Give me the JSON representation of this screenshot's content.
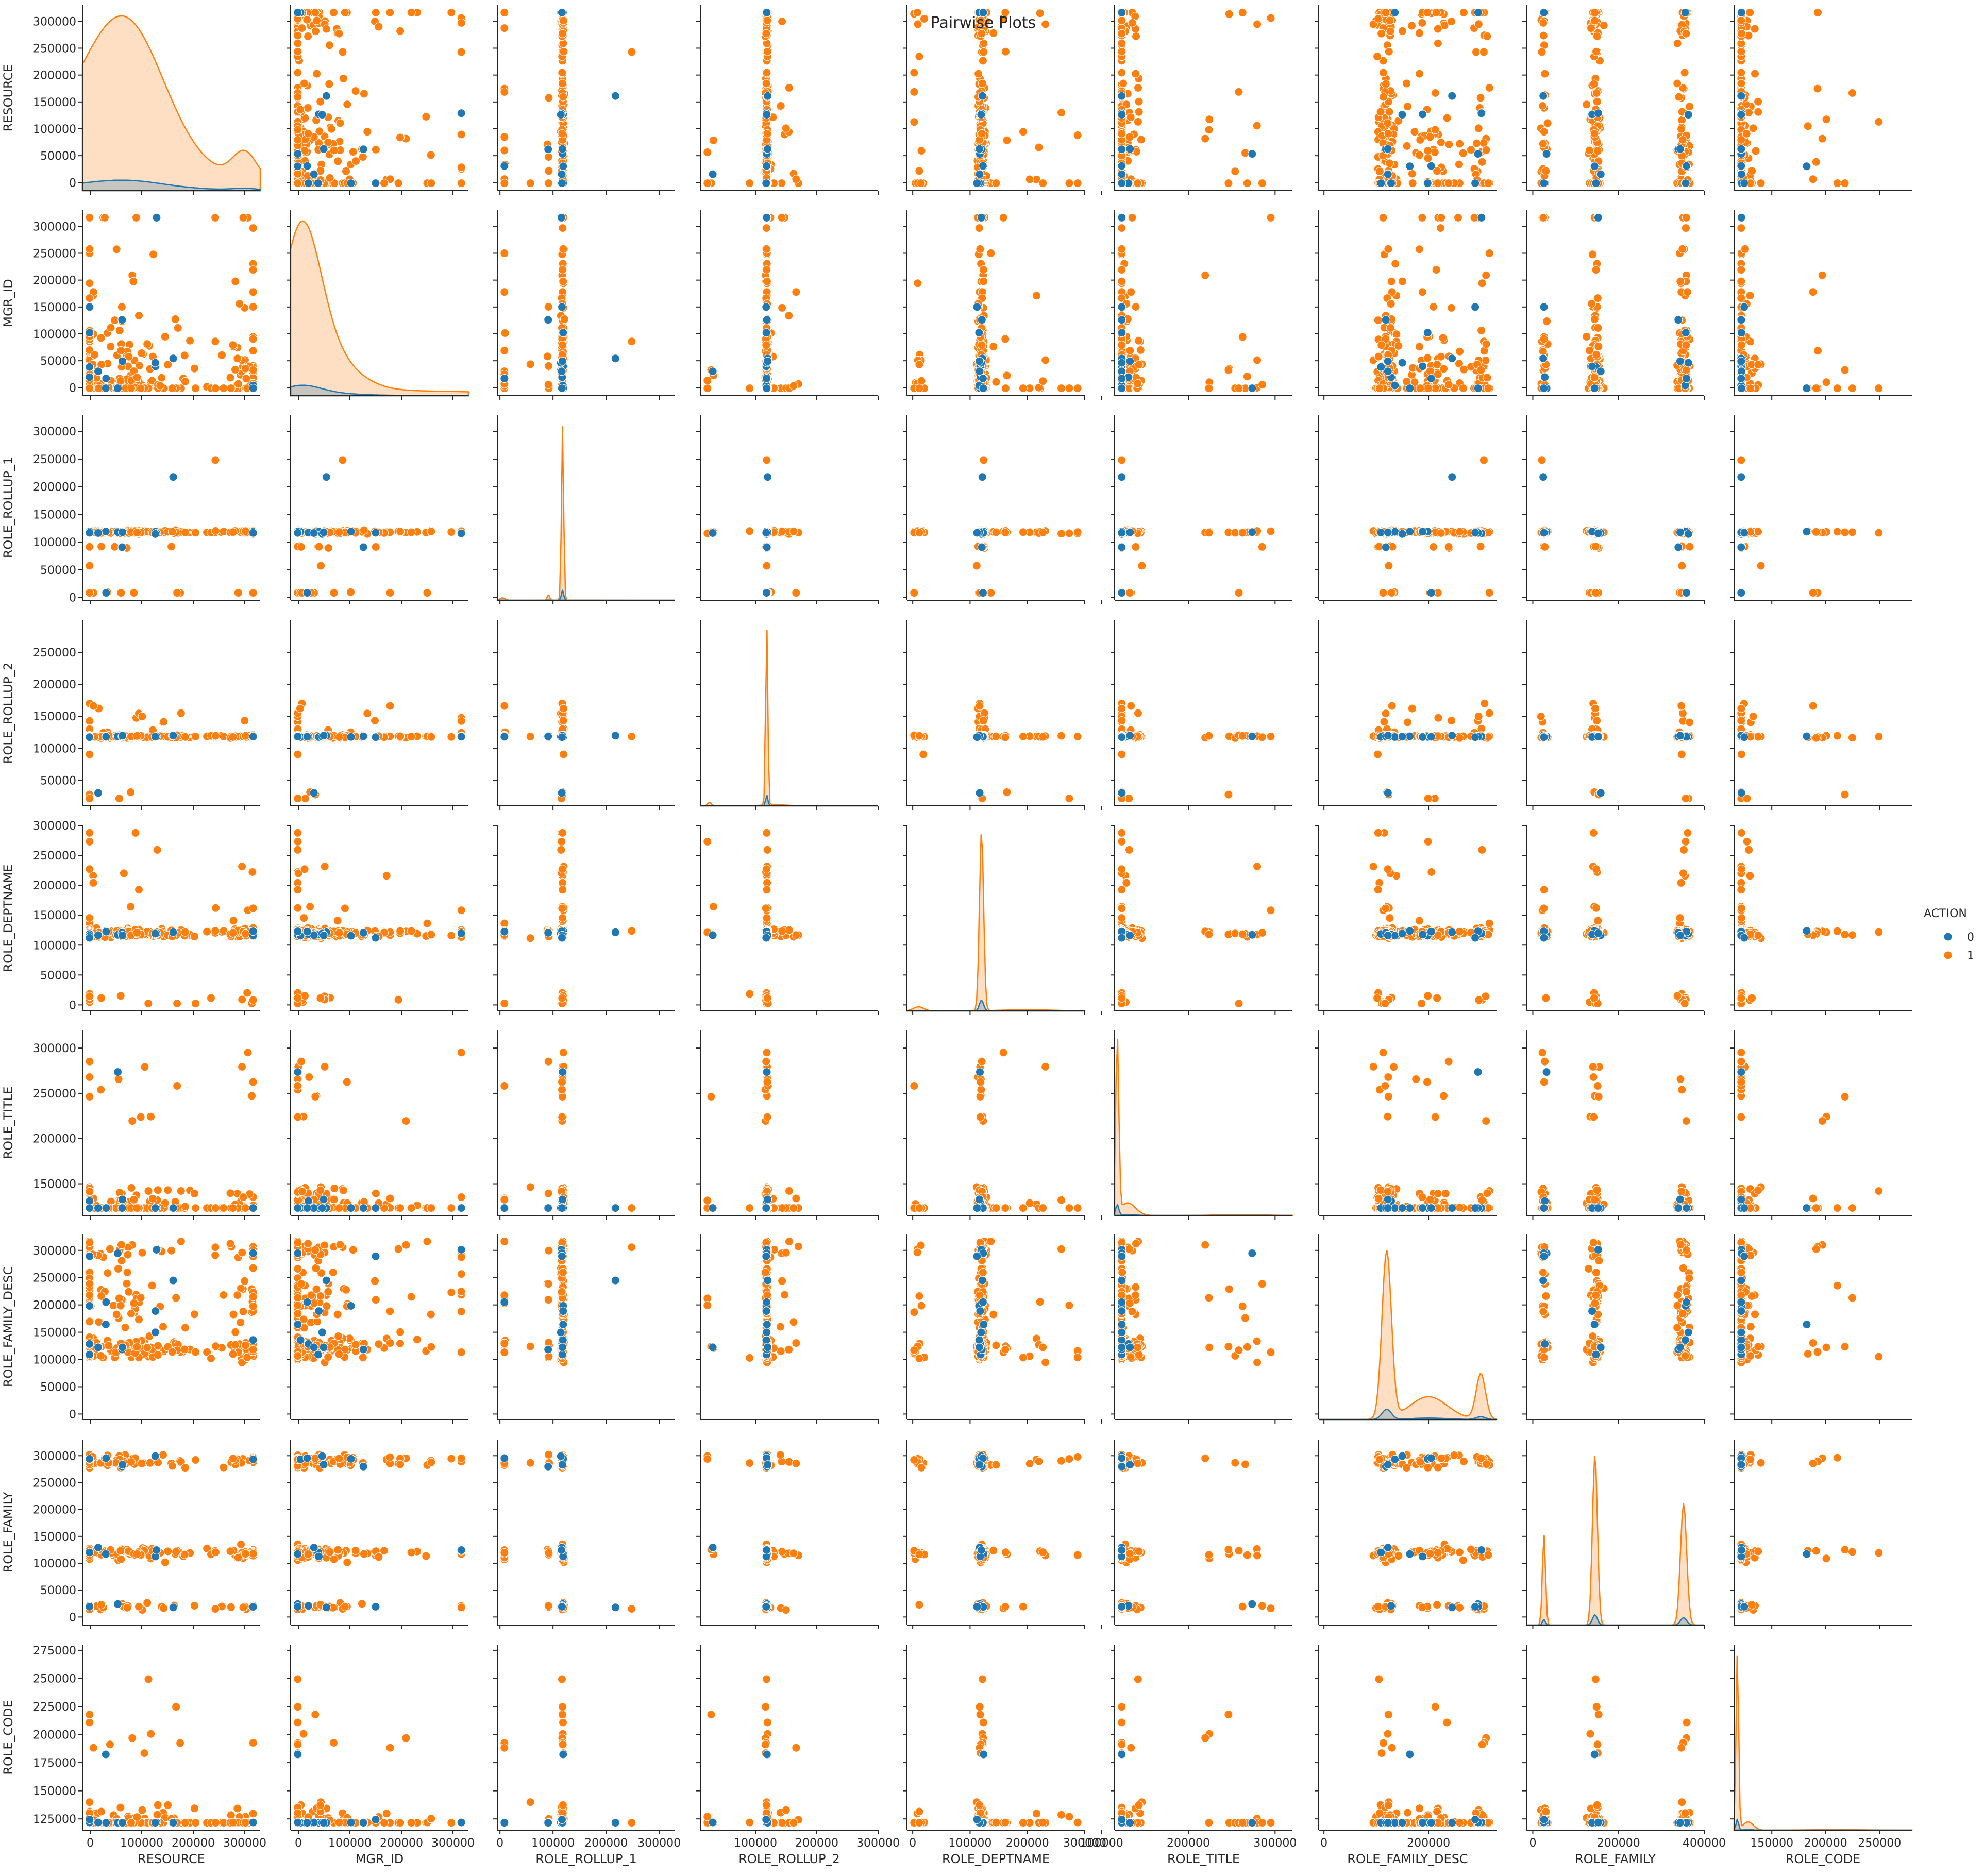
{
  "chart_data": {
    "type": "scatter",
    "title": "Pairwise Plots",
    "variables": [
      "RESOURCE",
      "MGR_ID",
      "ROLE_ROLLUP_1",
      "ROLE_ROLLUP_2",
      "ROLE_DEPTNAME",
      "ROLE_TITLE",
      "ROLE_FAMILY_DESC",
      "ROLE_FAMILY",
      "ROLE_CODE"
    ],
    "ranges": {
      "RESOURCE": [
        -15000,
        330000
      ],
      "MGR_ID": [
        -15000,
        330000
      ],
      "ROLE_ROLLUP_1": [
        -5000,
        330000
      ],
      "ROLE_ROLLUP_2": [
        10000,
        300000
      ],
      "ROLE_DEPTNAME": [
        -10000,
        300000
      ],
      "ROLE_TITLE": [
        115000,
        320000
      ],
      "ROLE_FAMILY_DESC": [
        -10000,
        330000
      ],
      "ROLE_FAMILY": [
        -15000,
        330000
      ],
      "ROLE_CODE": [
        115000,
        280000
      ]
    },
    "y_ticks": {
      "RESOURCE": [
        0,
        50000,
        100000,
        150000,
        200000,
        250000,
        300000
      ],
      "MGR_ID": [
        0,
        50000,
        100000,
        150000,
        200000,
        250000,
        300000
      ],
      "ROLE_ROLLUP_1": [
        0,
        50000,
        100000,
        150000,
        200000,
        250000,
        300000
      ],
      "ROLE_ROLLUP_2": [
        50000,
        100000,
        150000,
        200000,
        250000
      ],
      "ROLE_DEPTNAME": [
        0,
        50000,
        100000,
        150000,
        200000,
        250000,
        300000
      ],
      "ROLE_TITLE": [
        150000,
        200000,
        250000,
        300000
      ],
      "ROLE_FAMILY_DESC": [
        0,
        50000,
        100000,
        150000,
        200000,
        250000,
        300000
      ],
      "ROLE_FAMILY": [
        0,
        50000,
        100000,
        150000,
        200000,
        250000,
        300000
      ],
      "ROLE_CODE": [
        125000,
        150000,
        175000,
        200000,
        225000,
        250000,
        275000
      ]
    },
    "x_ticks": {
      "RESOURCE": [
        0,
        100000,
        200000,
        300000
      ],
      "MGR_ID": [
        0,
        100000,
        200000,
        300000
      ],
      "ROLE_ROLLUP_1": [
        0,
        100000,
        200000,
        300000
      ],
      "ROLE_ROLLUP_2": [
        100000,
        200000,
        300000
      ],
      "ROLE_DEPTNAME": [
        0,
        100000,
        200000,
        300000
      ],
      "ROLE_TITLE": [
        100000,
        200000,
        300000
      ],
      "ROLE_FAMILY_DESC": [
        0,
        200000
      ],
      "ROLE_FAMILY": [
        0,
        200000,
        400000
      ],
      "ROLE_CODE": [
        150000,
        200000,
        250000
      ]
    },
    "x_ticks_extent": {
      "ROLE_FAMILY": [
        -15000,
        400000
      ]
    },
    "hue": {
      "title": "ACTION",
      "levels": [
        {
          "label": "0",
          "color": "#1f77b4"
        },
        {
          "label": "1",
          "color": "#ff7f0e"
        }
      ]
    },
    "clusters": {
      "RESOURCE": [
        [
          0,
          150000,
          0.18
        ],
        [
          25000,
          310000,
          0.28
        ],
        [
          75000,
          120000,
          0.35
        ],
        [
          300000,
          40000,
          0.03
        ]
      ],
      "MGR_ID": [
        [
          5000,
          60000,
          0.55
        ],
        [
          20000,
          90000,
          0.2
        ],
        [
          60000,
          100000,
          0.15
        ],
        [
          220000,
          300000,
          0.1
        ]
      ],
      "ROLE_ROLLUP_1": [
        [
          117961,
          2000,
          0.92
        ],
        [
          5000,
          8000,
          0.03
        ],
        [
          91261,
          2000,
          0.03
        ],
        [
          130000,
          100000,
          0.02
        ]
      ],
      "ROLE_ROLLUP_2": [
        [
          118300,
          1500,
          0.9
        ],
        [
          25000,
          5000,
          0.03
        ],
        [
          130000,
          30000,
          0.07
        ]
      ],
      "ROLE_DEPTNAME": [
        [
          120000,
          6000,
          0.88
        ],
        [
          10000,
          15000,
          0.05
        ],
        [
          200000,
          70000,
          0.07
        ]
      ],
      "ROLE_TITLE": [
        [
          118000,
          3000,
          0.7
        ],
        [
          130000,
          15000,
          0.25
        ],
        [
          260000,
          40000,
          0.05
        ]
      ],
      "ROLE_FAMILY_DESC": [
        [
          120000,
          15000,
          0.55
        ],
        [
          200000,
          60000,
          0.3
        ],
        [
          300000,
          15000,
          0.15
        ]
      ],
      "ROLE_FAMILY": [
        [
          19000,
          5000,
          0.15
        ],
        [
          118000,
          8000,
          0.45
        ],
        [
          290000,
          10000,
          0.4
        ]
      ],
      "ROLE_CODE": [
        [
          118000,
          2000,
          0.8
        ],
        [
          128000,
          8000,
          0.15
        ],
        [
          210000,
          50000,
          0.05
        ]
      ]
    },
    "kde_peaks": {
      "RESOURCE": 310000,
      "MGR_ID": 310000,
      "ROLE_ROLLUP_1": 310000,
      "ROLE_ROLLUP_2": 285000,
      "ROLE_DEPTNAME": 285000,
      "ROLE_TITLE": 310000,
      "ROLE_FAMILY_DESC": 300000,
      "ROLE_FAMILY": 300000,
      "ROLE_CODE": 270000
    }
  }
}
